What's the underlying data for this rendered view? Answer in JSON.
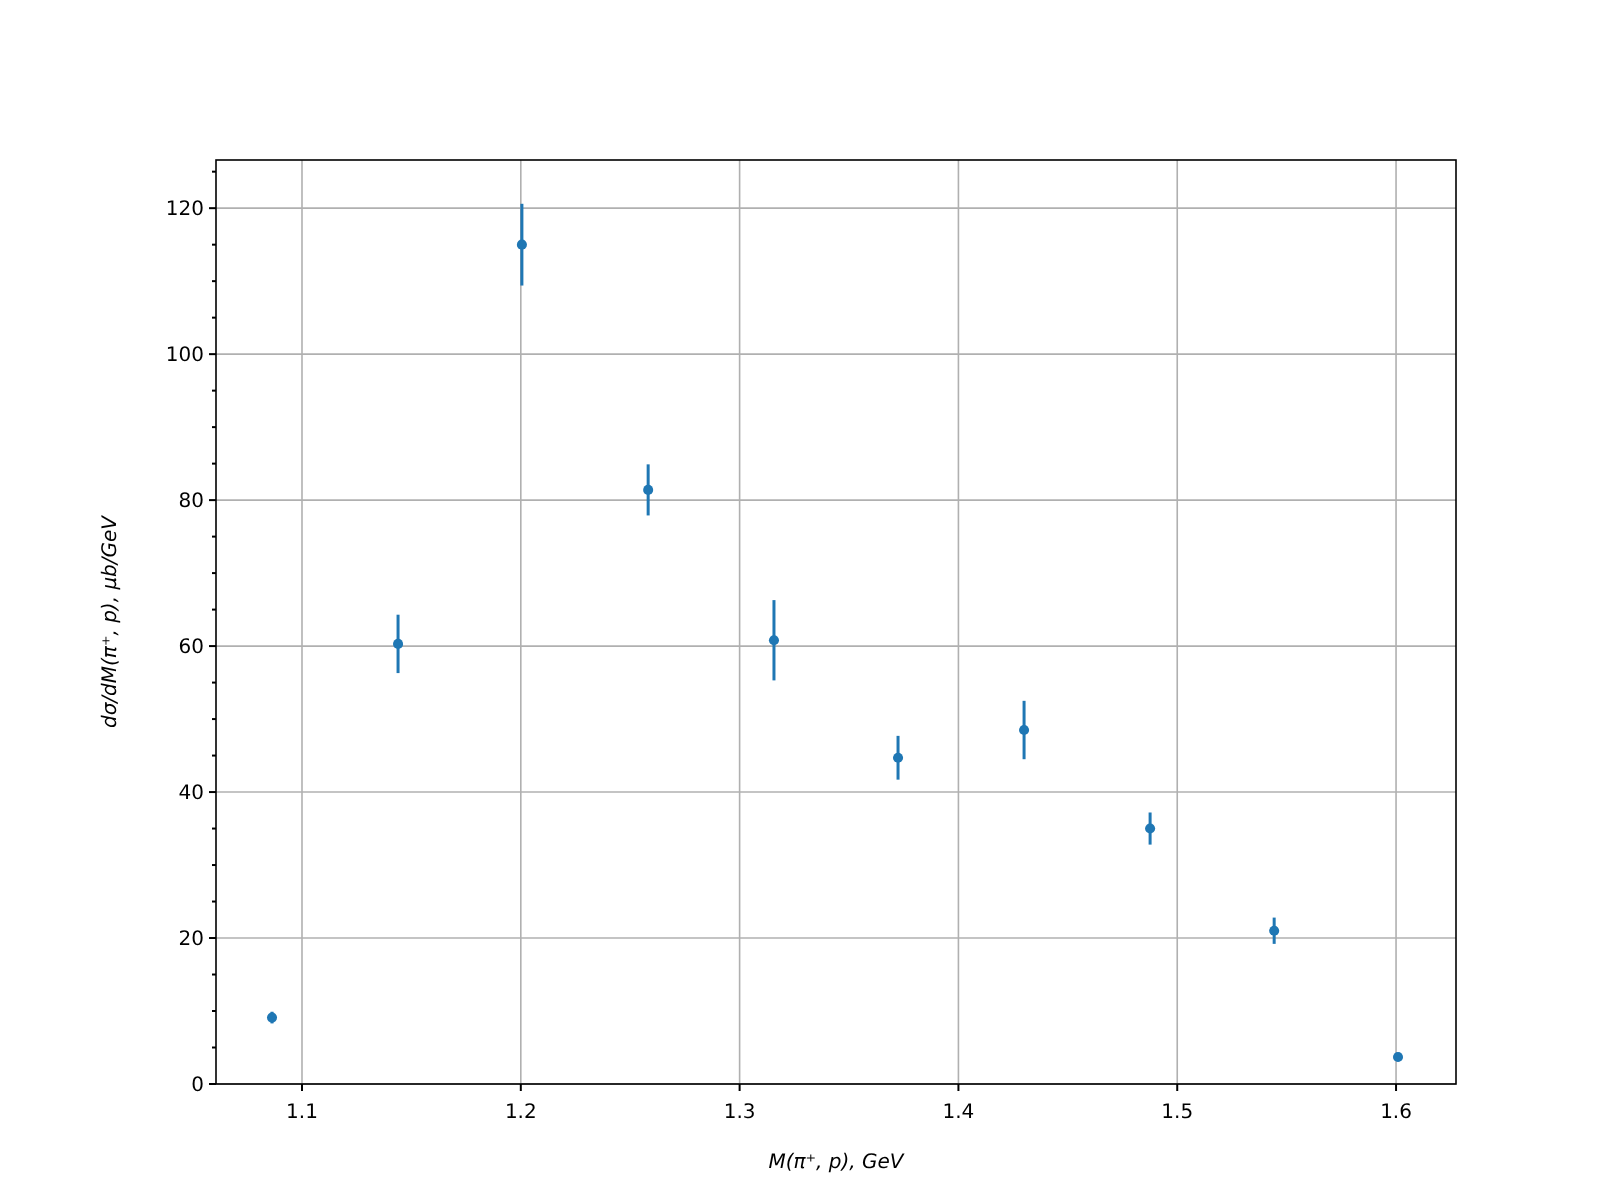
{
  "chart_data": {
    "type": "scatter",
    "xlabel": "M(π⁺, p), GeV",
    "ylabel": "dσ/dM(π⁺, p), μb/GeV",
    "x": [
      1.0863,
      1.1439,
      1.2005,
      1.2582,
      1.3157,
      1.3724,
      1.43,
      1.4876,
      1.5443,
      1.6009
    ],
    "series": [
      {
        "color": "#1f77b4",
        "values": [
          9.1,
          60.3,
          115,
          81.4,
          60.8,
          44.7,
          48.5,
          35,
          21,
          3.7
        ],
        "errors": [
          0.8,
          4,
          5.6,
          3.5,
          5.5,
          3,
          4,
          2.2,
          1.8,
          0.6
        ]
      }
    ],
    "xlim": [
      1.0607,
      1.6274
    ],
    "ylim": [
      0,
      126.6
    ],
    "xticks": [
      1.1,
      1.2,
      1.3,
      1.4,
      1.5,
      1.6
    ],
    "yticks": [
      0,
      {
        "value": 5,
        "label": null
      },
      {
        "value": 10,
        "label": null
      },
      {
        "value": 15,
        "label": null
      },
      20,
      {
        "value": 25,
        "label": null
      },
      {
        "value": 30,
        "label": null
      },
      {
        "value": 35,
        "label": null
      },
      40,
      {
        "value": 45,
        "label": null
      },
      {
        "value": 50,
        "label": null
      },
      {
        "value": 55,
        "label": null
      },
      60,
      {
        "value": 65,
        "label": null
      },
      {
        "value": 70,
        "label": null
      },
      {
        "value": 75,
        "label": null
      },
      80,
      {
        "value": 85,
        "label": null
      },
      {
        "value": 90,
        "label": null
      },
      {
        "value": 95,
        "label": null
      },
      100,
      {
        "value": 105,
        "label": null
      },
      {
        "value": 110,
        "label": null
      },
      {
        "value": 115,
        "label": null
      },
      120,
      {
        "value": 125,
        "label": null
      }
    ],
    "grid": true,
    "marker": "circle"
  }
}
